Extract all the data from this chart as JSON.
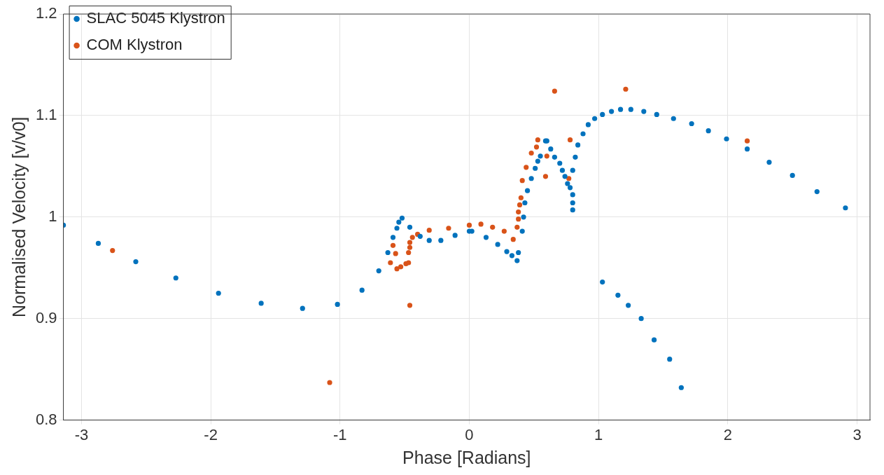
{
  "chart_data": {
    "type": "scatter",
    "xlabel": "Phase [Radians]",
    "ylabel": "Normalised Velocity [v/v0]",
    "xlim": [
      -3.14,
      3.1
    ],
    "xticks": [
      -3,
      -2,
      -1,
      0,
      1,
      2,
      3
    ],
    "ylim": [
      0.8,
      1.2
    ],
    "yticks": [
      0.8,
      0.9,
      1,
      1.1,
      1.2
    ],
    "grid": true,
    "legend": "top left",
    "marker": "circle",
    "series": [
      {
        "name": "SLAC 5045 Klystron",
        "color": "#0072bd",
        "x": [
          -3.14,
          -2.87,
          -2.58,
          -2.27,
          -1.94,
          -1.61,
          -1.29,
          -1.02,
          -0.83,
          -0.7,
          -0.63,
          -0.59,
          -0.56,
          -0.545,
          -0.52,
          -0.46,
          -0.38,
          -0.31,
          -0.22,
          -0.11,
          0,
          0.02,
          0.13,
          0.22,
          0.29,
          0.33,
          0.37,
          0.38,
          0.41,
          0.42,
          0.43,
          0.45,
          0.48,
          0.51,
          0.53,
          0.55,
          0.59,
          0.6,
          0.63,
          0.66,
          0.7,
          0.72,
          0.74,
          0.76,
          0.78,
          0.8,
          0.8,
          0.8,
          0.8,
          0.82,
          0.84,
          0.88,
          0.92,
          0.97,
          1.03,
          1.1,
          1.17,
          1.25,
          1.35,
          1.45,
          1.58,
          1.72,
          1.85,
          1.99,
          2.15,
          2.32,
          2.5,
          2.69,
          2.91,
          1.03,
          1.15,
          1.23,
          1.33,
          1.43,
          1.55,
          1.64
        ],
        "values": [
          0.992,
          0.974,
          0.956,
          0.94,
          0.925,
          0.915,
          0.91,
          0.914,
          0.928,
          0.947,
          0.965,
          0.98,
          0.989,
          0.995,
          0.999,
          0.99,
          0.981,
          0.977,
          0.977,
          0.982,
          0.986,
          0.986,
          0.98,
          0.973,
          0.966,
          0.962,
          0.957,
          0.965,
          0.986,
          1.0,
          1.014,
          1.026,
          1.038,
          1.048,
          1.055,
          1.06,
          1.075,
          1.075,
          1.067,
          1.059,
          1.053,
          1.046,
          1.04,
          1.033,
          1.029,
          1.022,
          1.014,
          1.007,
          1.046,
          1.059,
          1.071,
          1.082,
          1.091,
          1.097,
          1.101,
          1.104,
          1.106,
          1.106,
          1.104,
          1.101,
          1.097,
          1.092,
          1.085,
          1.077,
          1.067,
          1.054,
          1.041,
          1.025,
          1.009,
          0.936,
          0.923,
          0.913,
          0.9,
          0.879,
          0.86,
          0.832
        ]
      },
      {
        "name": "COM Klystron",
        "color": "#d95319",
        "x": [
          -2.76,
          -1.08,
          -0.61,
          -0.59,
          -0.57,
          -0.56,
          -0.53,
          -0.49,
          -0.47,
          -0.47,
          -0.46,
          -0.46,
          -0.46,
          -0.44,
          -0.4,
          -0.31,
          -0.16,
          0,
          0.09,
          0.18,
          0.27,
          0.34,
          0.37,
          0.38,
          0.38,
          0.39,
          0.4,
          0.41,
          0.44,
          0.48,
          0.52,
          0.53,
          0.59,
          0.6,
          0.66,
          0.77,
          0.78,
          1.21,
          2.15
        ],
        "values": [
          0.967,
          0.837,
          0.955,
          0.972,
          0.964,
          0.949,
          0.951,
          0.954,
          0.955,
          0.965,
          0.97,
          0.975,
          0.913,
          0.98,
          0.983,
          0.987,
          0.989,
          0.992,
          0.993,
          0.99,
          0.986,
          0.978,
          0.99,
          0.998,
          1.005,
          1.012,
          1.019,
          1.036,
          1.049,
          1.063,
          1.069,
          1.076,
          1.04,
          1.06,
          1.124,
          1.038,
          1.076,
          1.126,
          1.075
        ]
      }
    ]
  }
}
